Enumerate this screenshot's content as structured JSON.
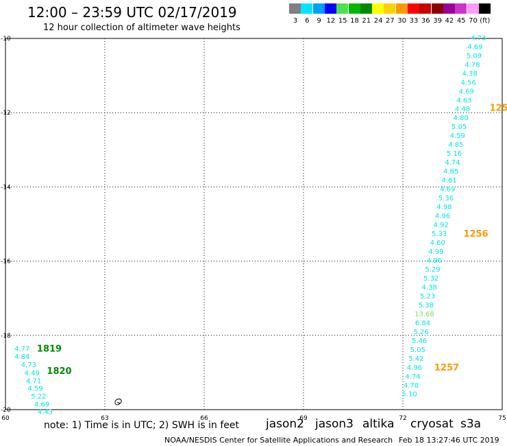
{
  "header": {
    "title": "12:00 – 23:59 UTC 02/17/2019",
    "subtitle": "12 hour collection of altimeter wave heights"
  },
  "color_scale": {
    "labels": [
      "3",
      "6",
      "9",
      "12",
      "15",
      "18",
      "21",
      "24",
      "27",
      "30",
      "33",
      "36",
      "39",
      "42",
      "45",
      "70",
      "(ft)"
    ],
    "colors": [
      "#7f7f7f",
      "#00e5ff",
      "#009fff",
      "#0000ff",
      "#4ee04e",
      "#00b800",
      "#008a00",
      "#ffff00",
      "#ffd000",
      "#ff9900",
      "#ff0000",
      "#c80000",
      "#8c0000",
      "#990099",
      "#cc33cc",
      "#ff99ff",
      "#000000"
    ]
  },
  "axes": {
    "lon_ticks": [
      "60",
      "63",
      "66",
      "69",
      "72",
      "75"
    ],
    "lat_ticks": [
      "-10",
      "-12",
      "-14",
      "-16",
      "-18",
      "-20"
    ]
  },
  "tracks": [
    {
      "name": "east-track",
      "color": "#00e5e5",
      "points": [
        {
          "lon": 74.28,
          "lat": -9.97,
          "value": "4.73"
        },
        {
          "lon": 74.18,
          "lat": -10.21,
          "value": "4.69"
        },
        {
          "lon": 74.15,
          "lat": -10.45,
          "value": "5.09"
        },
        {
          "lon": 74.1,
          "lat": -10.69,
          "value": "4.78"
        },
        {
          "lon": 74.02,
          "lat": -10.93,
          "value": "4.38"
        },
        {
          "lon": 73.98,
          "lat": -11.17,
          "value": "4.56"
        },
        {
          "lon": 73.92,
          "lat": -11.41,
          "value": "4.69"
        },
        {
          "lon": 73.85,
          "lat": -11.65,
          "value": "4.63"
        },
        {
          "lon": 73.8,
          "lat": -11.89,
          "value": "4.48"
        },
        {
          "lon": 73.75,
          "lat": -12.13,
          "value": "4.80"
        },
        {
          "lon": 73.7,
          "lat": -12.37,
          "value": "5.05"
        },
        {
          "lon": 73.65,
          "lat": -12.61,
          "value": "4.59"
        },
        {
          "lon": 73.6,
          "lat": -12.85,
          "value": "4.85"
        },
        {
          "lon": 73.55,
          "lat": -13.09,
          "value": "5.16"
        },
        {
          "lon": 73.5,
          "lat": -13.33,
          "value": "4.74"
        },
        {
          "lon": 73.45,
          "lat": -13.57,
          "value": "4.85"
        },
        {
          "lon": 73.4,
          "lat": -13.81,
          "value": "4.61"
        },
        {
          "lon": 73.35,
          "lat": -14.05,
          "value": "4.69"
        },
        {
          "lon": 73.3,
          "lat": -14.29,
          "value": "5.36"
        },
        {
          "lon": 73.25,
          "lat": -14.53,
          "value": "4.98"
        },
        {
          "lon": 73.2,
          "lat": -14.77,
          "value": "4.96"
        },
        {
          "lon": 73.15,
          "lat": -15.01,
          "value": "4.92"
        },
        {
          "lon": 73.1,
          "lat": -15.25,
          "value": "5.33"
        },
        {
          "lon": 73.05,
          "lat": -15.49,
          "value": "4.60"
        },
        {
          "lon": 73.0,
          "lat": -15.73,
          "value": "4.99"
        },
        {
          "lon": 72.95,
          "lat": -15.97,
          "value": "4.96"
        },
        {
          "lon": 72.9,
          "lat": -16.21,
          "value": "5.29"
        },
        {
          "lon": 72.85,
          "lat": -16.45,
          "value": "5.32"
        },
        {
          "lon": 72.8,
          "lat": -16.69,
          "value": "4.38"
        },
        {
          "lon": 72.75,
          "lat": -16.93,
          "value": "5.23"
        },
        {
          "lon": 72.7,
          "lat": -17.17,
          "value": "5.38"
        },
        {
          "lon": 72.65,
          "lat": -17.41,
          "value": "13.68",
          "color": "#7be05a"
        },
        {
          "lon": 72.6,
          "lat": -17.65,
          "value": "6.84"
        },
        {
          "lon": 72.55,
          "lat": -17.89,
          "value": "5.26"
        },
        {
          "lon": 72.5,
          "lat": -18.13,
          "value": "5.46"
        },
        {
          "lon": 72.45,
          "lat": -18.37,
          "value": "5.05"
        },
        {
          "lon": 72.4,
          "lat": -18.61,
          "value": "5.42"
        },
        {
          "lon": 72.35,
          "lat": -18.85,
          "value": "4.96"
        },
        {
          "lon": 72.3,
          "lat": -19.09,
          "value": "4.74"
        },
        {
          "lon": 72.25,
          "lat": -19.33,
          "value": "4.78"
        },
        {
          "lon": 72.2,
          "lat": -19.57,
          "value": "5.10"
        }
      ]
    },
    {
      "name": "west-track",
      "color": "#00e5e5",
      "points": [
        {
          "lon": 60.5,
          "lat": -18.35,
          "value": "4.77"
        },
        {
          "lon": 60.5,
          "lat": -18.56,
          "value": "4.84"
        },
        {
          "lon": 60.7,
          "lat": -18.78,
          "value": "4.73"
        },
        {
          "lon": 60.8,
          "lat": -19.0,
          "value": "4.49"
        },
        {
          "lon": 60.85,
          "lat": -19.21,
          "value": "4.71"
        },
        {
          "lon": 60.9,
          "lat": -19.42,
          "value": "4.59"
        },
        {
          "lon": 61.0,
          "lat": -19.63,
          "value": "5.22"
        },
        {
          "lon": 61.1,
          "lat": -19.84,
          "value": "4.69"
        },
        {
          "lon": 61.2,
          "lat": -20.05,
          "value": "4.43"
        }
      ]
    }
  ],
  "time_labels": [
    {
      "lon": 74.62,
      "lat": -11.86,
      "text": "125",
      "color": "#ff9900"
    },
    {
      "lon": 73.83,
      "lat": -15.25,
      "text": "1256",
      "color": "#ff9900"
    },
    {
      "lon": 72.95,
      "lat": -18.85,
      "text": "1257",
      "color": "#ff9900"
    },
    {
      "lon": 60.95,
      "lat": -18.35,
      "text": "1819",
      "color": "#008a00"
    },
    {
      "lon": 61.25,
      "lat": -18.95,
      "text": "1820",
      "color": "#008a00"
    }
  ],
  "footer": {
    "note": "note: 1) Time is in UTC; 2) SWH is in feet",
    "satellites": [
      {
        "name": "jason2",
        "color": "#0000ff"
      },
      {
        "name": "jason3",
        "color": "#00a000"
      },
      {
        "name": "altika",
        "color": "#ff9900"
      },
      {
        "name": "cryosat",
        "color": "#ff0000"
      },
      {
        "name": "s3a",
        "color": "#8b0000"
      }
    ],
    "credit": "NOAA/NESDIS Center for Satellite Applications and Research",
    "timestamp": "Feb 18 13:27:46 UTC 2019"
  }
}
